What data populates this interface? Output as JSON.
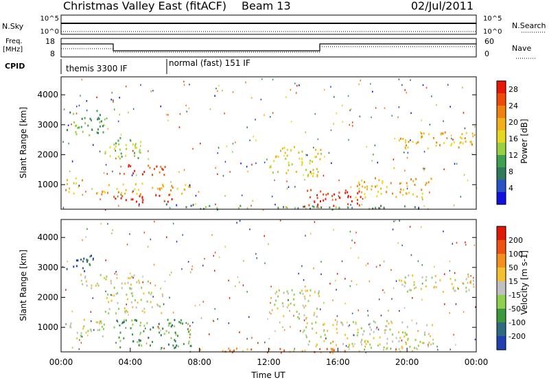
{
  "header": {
    "title": "Christmas Valley East (fitACF)",
    "beam": "Beam 13",
    "date": "02/Jul/2011"
  },
  "panels": {
    "noise": {
      "left_label": "N.Sky",
      "right_label": "N.Search",
      "left_ticks": [
        "10^5",
        "10^0"
      ],
      "right_ticks": [
        "10^5",
        "10^0"
      ]
    },
    "freq": {
      "left_label_1": "Freq.",
      "left_label_2": "[MHz]",
      "right_label": "Nave",
      "left_ticks": [
        "18",
        "8"
      ],
      "right_ticks": [
        "60",
        "0"
      ]
    },
    "cpid": {
      "label": "CPID",
      "modes": [
        "themis 3300 IF",
        "normal (fast) 151 IF"
      ]
    }
  },
  "chart_data": [
    {
      "type": "heatmap",
      "name": "power",
      "ylabel": "Slant Range [km]",
      "xlabel": "",
      "y_ticks": [
        1000,
        2000,
        3000,
        4000
      ],
      "ylim": [
        180,
        4600
      ],
      "colorbar": {
        "label": "Power [dB]",
        "ticks": [
          4,
          8,
          12,
          16,
          20,
          24,
          28
        ],
        "range": [
          0,
          30
        ],
        "colors": [
          "#1010e0",
          "#2a52c8",
          "#2e7a5a",
          "#3ea050",
          "#9ad040",
          "#e6d820",
          "#f4b018",
          "#f08010",
          "#f04a08",
          "#e81808"
        ]
      },
      "features": [
        {
          "x0": 0.3,
          "x1": 2.5,
          "y0": 2600,
          "y1": 3500,
          "level": 3
        },
        {
          "x0": 2.5,
          "x1": 5.0,
          "y0": 1900,
          "y1": 2600,
          "level": 4
        },
        {
          "x0": 3.0,
          "x1": 6.0,
          "y0": 1350,
          "y1": 1700,
          "level": 8
        },
        {
          "x0": 0.2,
          "x1": 1.2,
          "y0": 700,
          "y1": 1300,
          "level": 6
        },
        {
          "x0": 2.0,
          "x1": 7.5,
          "y0": 700,
          "y1": 1100,
          "level": 6
        },
        {
          "x0": 3.0,
          "x1": 6.5,
          "y0": 400,
          "y1": 700,
          "level": 9
        },
        {
          "x0": 6.0,
          "x1": 8.0,
          "y0": 250,
          "y1": 380,
          "level": 2
        },
        {
          "x0": 12.0,
          "x1": 15.0,
          "y0": 1300,
          "y1": 2300,
          "level": 5
        },
        {
          "x0": 14.0,
          "x1": 17.5,
          "y0": 300,
          "y1": 900,
          "level": 9
        },
        {
          "x0": 17.0,
          "x1": 21.5,
          "y0": 600,
          "y1": 1250,
          "level": 6
        },
        {
          "x0": 7.5,
          "x1": 21.0,
          "y0": 200,
          "y1": 330,
          "level": 3
        },
        {
          "x0": 19.5,
          "x1": 24.0,
          "y0": 2200,
          "y1": 2800,
          "level": 6
        }
      ]
    },
    {
      "type": "heatmap",
      "name": "velocity",
      "ylabel": "Slant Range [km]",
      "xlabel": "Time UT",
      "x_ticks": [
        "00:00",
        "04:00",
        "08:00",
        "12:00",
        "16:00",
        "20:00",
        "00:00"
      ],
      "y_ticks": [
        1000,
        2000,
        3000,
        4000
      ],
      "ylim": [
        180,
        4600
      ],
      "colorbar": {
        "label": "Velocity [m s-1]",
        "ticks": [
          200,
          100,
          50,
          15,
          -15,
          -50,
          -100,
          -200
        ],
        "colors": [
          "#2040b0",
          "#306a80",
          "#3c9a3c",
          "#90d050",
          "#c0c0c0",
          "#f4c030",
          "#f49020",
          "#f05010",
          "#e01808"
        ]
      },
      "features": [
        {
          "x0": 0.3,
          "x1": 2.0,
          "y0": 2900,
          "y1": 3500,
          "level": 1
        },
        {
          "x0": 1.0,
          "x1": 5.0,
          "y0": 2300,
          "y1": 2800,
          "level": 4
        },
        {
          "x0": 2.5,
          "x1": 6.0,
          "y0": 1500,
          "y1": 2200,
          "level": 4
        },
        {
          "x0": 3.0,
          "x1": 7.5,
          "y0": 300,
          "y1": 1300,
          "level": 2
        },
        {
          "x0": 0.3,
          "x1": 2.5,
          "y0": 600,
          "y1": 1300,
          "level": 4
        },
        {
          "x0": 12.0,
          "x1": 15.0,
          "y0": 1300,
          "y1": 2300,
          "level": 4
        },
        {
          "x0": 14.0,
          "x1": 21.5,
          "y0": 300,
          "y1": 1250,
          "level": 4
        },
        {
          "x0": 7.5,
          "x1": 21.0,
          "y0": 180,
          "y1": 330,
          "level": 6
        },
        {
          "x0": 19.5,
          "x1": 24.0,
          "y0": 2200,
          "y1": 2800,
          "level": 4
        }
      ]
    }
  ]
}
